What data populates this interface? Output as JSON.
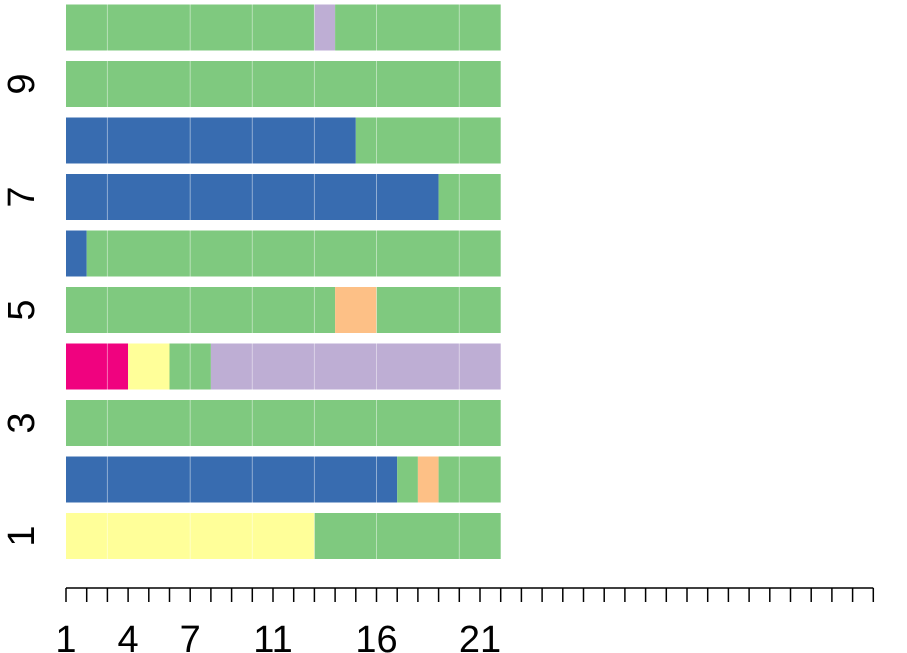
{
  "chart_data": {
    "type": "bar",
    "orientation": "horizontal-stacked-segments",
    "rows": [
      1,
      2,
      3,
      4,
      5,
      6,
      7,
      8,
      9,
      10
    ],
    "row_tick_labels": [
      "1",
      "3",
      "5",
      "7",
      "9"
    ],
    "x_tick_labels": [
      "1",
      "4",
      "7",
      "11",
      "16",
      "21"
    ],
    "x_tick_values": [
      1,
      4,
      7,
      11,
      16,
      21
    ],
    "xlim": [
      1,
      40
    ],
    "grid_lines_at": [
      3,
      7,
      10,
      13,
      16,
      20
    ],
    "palette": {
      "green": "#7fc97f",
      "purple": "#beaed4",
      "orange": "#fdc086",
      "yellow": "#ffff99",
      "blue": "#386cb0",
      "pink": "#f0027f"
    },
    "series": [
      {
        "row": 1,
        "segments": [
          {
            "from": 1,
            "to": 13,
            "color": "yellow"
          },
          {
            "from": 13,
            "to": 22,
            "color": "green"
          }
        ]
      },
      {
        "row": 2,
        "segments": [
          {
            "from": 1,
            "to": 17,
            "color": "blue"
          },
          {
            "from": 17,
            "to": 18,
            "color": "green"
          },
          {
            "from": 18,
            "to": 19,
            "color": "orange"
          },
          {
            "from": 19,
            "to": 22,
            "color": "green"
          }
        ]
      },
      {
        "row": 3,
        "segments": [
          {
            "from": 1,
            "to": 22,
            "color": "green"
          }
        ]
      },
      {
        "row": 4,
        "segments": [
          {
            "from": 1,
            "to": 4,
            "color": "pink"
          },
          {
            "from": 4,
            "to": 6,
            "color": "yellow"
          },
          {
            "from": 6,
            "to": 8,
            "color": "green"
          },
          {
            "from": 8,
            "to": 22,
            "color": "purple"
          }
        ]
      },
      {
        "row": 5,
        "segments": [
          {
            "from": 1,
            "to": 14,
            "color": "green"
          },
          {
            "from": 14,
            "to": 16,
            "color": "orange"
          },
          {
            "from": 16,
            "to": 22,
            "color": "green"
          }
        ]
      },
      {
        "row": 6,
        "segments": [
          {
            "from": 1,
            "to": 2,
            "color": "blue"
          },
          {
            "from": 2,
            "to": 22,
            "color": "green"
          }
        ]
      },
      {
        "row": 7,
        "segments": [
          {
            "from": 1,
            "to": 19,
            "color": "blue"
          },
          {
            "from": 19,
            "to": 22,
            "color": "green"
          }
        ]
      },
      {
        "row": 8,
        "segments": [
          {
            "from": 1,
            "to": 15,
            "color": "blue"
          },
          {
            "from": 15,
            "to": 22,
            "color": "green"
          }
        ]
      },
      {
        "row": 9,
        "segments": [
          {
            "from": 1,
            "to": 22,
            "color": "green"
          }
        ]
      },
      {
        "row": 10,
        "segments": [
          {
            "from": 1,
            "to": 13,
            "color": "green"
          },
          {
            "from": 13,
            "to": 14,
            "color": "purple"
          },
          {
            "from": 14,
            "to": 22,
            "color": "green"
          }
        ]
      }
    ]
  }
}
